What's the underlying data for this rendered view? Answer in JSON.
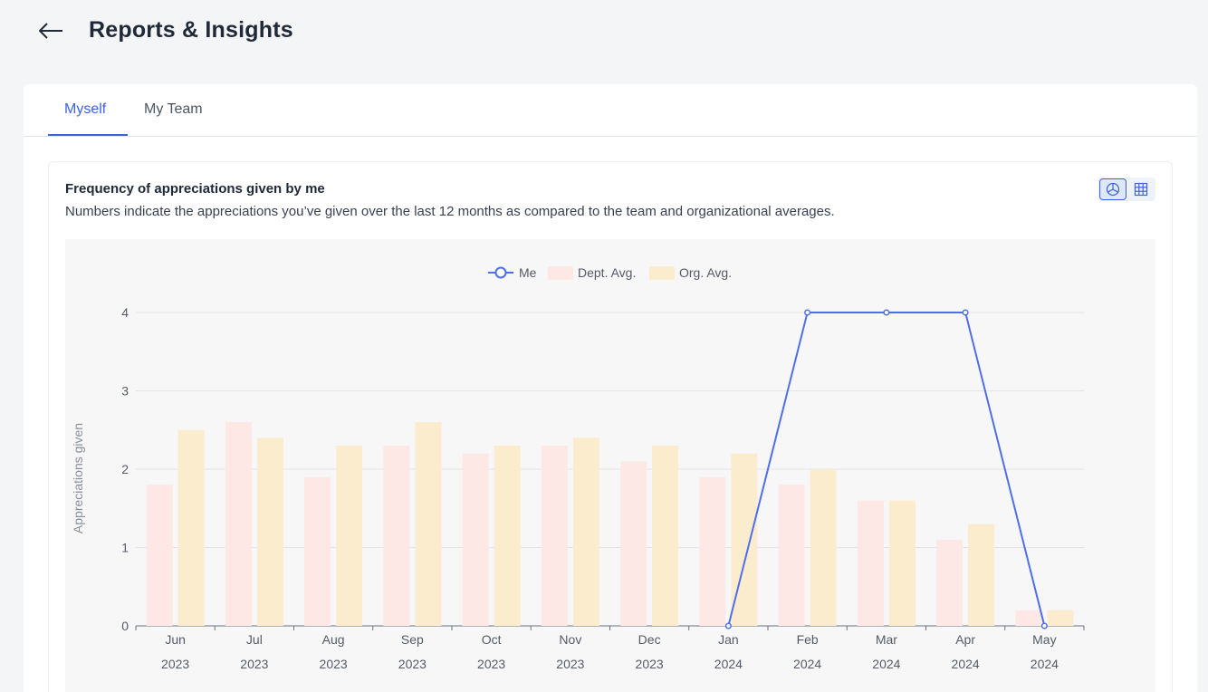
{
  "header": {
    "title": "Reports & Insights",
    "back_icon": "arrow-left-icon"
  },
  "tabs": [
    {
      "label": "Myself",
      "active": true
    },
    {
      "label": "My Team",
      "active": false
    }
  ],
  "card": {
    "title": "Frequency of appreciations given by me",
    "subtitle": "Numbers indicate the appreciations you’ve given over the last 12 months as compared to the team and organizational averages.",
    "view_toggle": [
      {
        "icon": "chart-view-icon",
        "active": true
      },
      {
        "icon": "table-view-icon",
        "active": false
      }
    ]
  },
  "colors": {
    "accent": "#3b63e0",
    "me_line": "#4f6fe8",
    "dept_bar": "#fde8e6",
    "org_bar": "#fbecce"
  },
  "chart_data": {
    "type": "bar",
    "ylabel": "Appreciations given",
    "ylim": [
      0,
      4
    ],
    "yticks": [
      0,
      1,
      2,
      3,
      4
    ],
    "legend": [
      "Me",
      "Dept. Avg.",
      "Org. Avg."
    ],
    "legend_position": "top-center",
    "categories": [
      {
        "month": "Jun",
        "year": "2023"
      },
      {
        "month": "Jul",
        "year": "2023"
      },
      {
        "month": "Aug",
        "year": "2023"
      },
      {
        "month": "Sep",
        "year": "2023"
      },
      {
        "month": "Oct",
        "year": "2023"
      },
      {
        "month": "Nov",
        "year": "2023"
      },
      {
        "month": "Dec",
        "year": "2023"
      },
      {
        "month": "Jan",
        "year": "2024"
      },
      {
        "month": "Feb",
        "year": "2024"
      },
      {
        "month": "Mar",
        "year": "2024"
      },
      {
        "month": "Apr",
        "year": "2024"
      },
      {
        "month": "May",
        "year": "2024"
      }
    ],
    "series": [
      {
        "name": "Dept. Avg.",
        "kind": "bar",
        "values": [
          1.8,
          2.6,
          1.9,
          2.3,
          2.2,
          2.3,
          2.1,
          1.9,
          1.8,
          1.6,
          1.1,
          0.2
        ]
      },
      {
        "name": "Org. Avg.",
        "kind": "bar",
        "values": [
          2.5,
          2.4,
          2.3,
          2.6,
          2.3,
          2.4,
          2.3,
          2.2,
          2.0,
          1.6,
          1.3,
          0.2
        ]
      },
      {
        "name": "Me",
        "kind": "line",
        "values": [
          null,
          null,
          null,
          null,
          null,
          null,
          null,
          0,
          4,
          4,
          4,
          0
        ]
      }
    ],
    "grid": true
  }
}
